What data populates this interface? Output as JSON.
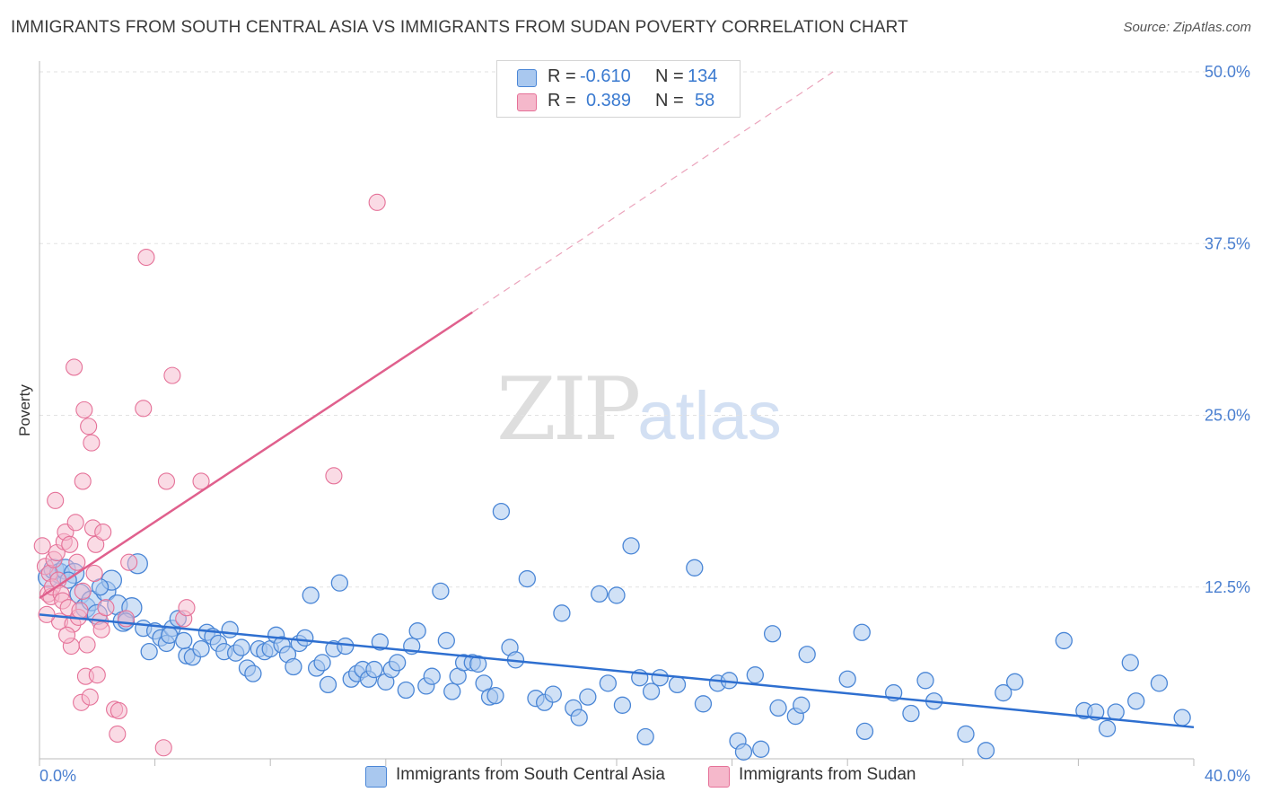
{
  "title": "IMMIGRANTS FROM SOUTH CENTRAL ASIA VS IMMIGRANTS FROM SUDAN POVERTY CORRELATION CHART",
  "source": "Source: ZipAtlas.com",
  "watermark": {
    "zip": "ZIP",
    "atlas": "atlas"
  },
  "legend": {
    "rows": [
      {
        "r_label": "R =",
        "r_value": "-0.610",
        "n_label": "N =",
        "n_value": "134",
        "color": "#a9c8ef"
      },
      {
        "r_label": "R =",
        "r_value": "0.389",
        "n_label": "N =",
        "n_value": "58",
        "color": "#f5b8cb"
      }
    ]
  },
  "bottom_legend": [
    {
      "label": "Immigrants from South Central Asia",
      "color": "#a9c8ef"
    },
    {
      "label": "Immigrants from Sudan",
      "color": "#f5b8cb"
    }
  ],
  "chart_data": {
    "type": "scatter",
    "title": "IMMIGRANTS FROM SOUTH CENTRAL ASIA VS IMMIGRANTS FROM SUDAN POVERTY CORRELATION CHART",
    "xlabel": "",
    "ylabel": "Poverty",
    "xlim": [
      0,
      40
    ],
    "ylim": [
      0,
      50
    ],
    "x_tick_labels": [
      "0.0%",
      "40.0%"
    ],
    "y_ticks": [
      12.5,
      25.0,
      37.5,
      50.0
    ],
    "y_tick_labels": [
      "12.5%",
      "25.0%",
      "37.5%",
      "50.0%"
    ],
    "grid": true,
    "series": [
      {
        "name": "Immigrants from South Central Asia",
        "color": "#4a86d6",
        "fill": "#a9c8ef",
        "trend": {
          "x": [
            0,
            40
          ],
          "y": [
            10.5,
            2.3
          ]
        },
        "points": [
          [
            0.3,
            13.2
          ],
          [
            0.5,
            13.8
          ],
          [
            0.7,
            13.5
          ],
          [
            0.9,
            13.8
          ],
          [
            1.2,
            13.5
          ],
          [
            1.4,
            12.0
          ],
          [
            1.6,
            11.0
          ],
          [
            1.8,
            11.5
          ],
          [
            2.0,
            10.5
          ],
          [
            2.3,
            12.2
          ],
          [
            2.5,
            13.0
          ],
          [
            2.7,
            11.2
          ],
          [
            2.9,
            10.0
          ],
          [
            3.2,
            11.0
          ],
          [
            3.4,
            14.2
          ],
          [
            3.6,
            9.5
          ],
          [
            3.8,
            7.8
          ],
          [
            4.0,
            9.3
          ],
          [
            4.2,
            8.8
          ],
          [
            4.4,
            8.4
          ],
          [
            4.6,
            9.5
          ],
          [
            4.8,
            10.2
          ],
          [
            5.1,
            7.5
          ],
          [
            5.3,
            7.4
          ],
          [
            5.6,
            8.0
          ],
          [
            5.8,
            9.2
          ],
          [
            6.0,
            8.9
          ],
          [
            6.2,
            8.4
          ],
          [
            6.4,
            7.8
          ],
          [
            6.6,
            9.4
          ],
          [
            6.8,
            7.7
          ],
          [
            7.0,
            8.1
          ],
          [
            7.2,
            6.6
          ],
          [
            7.4,
            6.2
          ],
          [
            7.6,
            8.0
          ],
          [
            7.8,
            7.8
          ],
          [
            8.0,
            8.0
          ],
          [
            8.2,
            9.0
          ],
          [
            8.4,
            8.3
          ],
          [
            8.6,
            7.6
          ],
          [
            8.8,
            6.7
          ],
          [
            9.0,
            8.4
          ],
          [
            9.2,
            8.8
          ],
          [
            9.4,
            11.9
          ],
          [
            9.6,
            6.6
          ],
          [
            9.8,
            7.0
          ],
          [
            10.0,
            5.4
          ],
          [
            10.2,
            8.0
          ],
          [
            10.4,
            12.8
          ],
          [
            10.6,
            8.2
          ],
          [
            10.8,
            5.8
          ],
          [
            11.0,
            6.2
          ],
          [
            11.2,
            6.5
          ],
          [
            11.4,
            5.8
          ],
          [
            11.6,
            6.5
          ],
          [
            11.8,
            8.5
          ],
          [
            12.0,
            5.6
          ],
          [
            12.2,
            6.5
          ],
          [
            12.4,
            7.0
          ],
          [
            12.7,
            5.0
          ],
          [
            12.9,
            8.2
          ],
          [
            13.1,
            9.3
          ],
          [
            13.4,
            5.3
          ],
          [
            13.6,
            6.0
          ],
          [
            13.9,
            12.2
          ],
          [
            14.1,
            8.6
          ],
          [
            14.3,
            4.9
          ],
          [
            14.5,
            6.0
          ],
          [
            14.7,
            7.0
          ],
          [
            15.0,
            7.0
          ],
          [
            15.2,
            6.9
          ],
          [
            15.4,
            5.5
          ],
          [
            15.6,
            4.5
          ],
          [
            15.8,
            4.6
          ],
          [
            16.0,
            18.0
          ],
          [
            16.3,
            8.1
          ],
          [
            16.5,
            7.2
          ],
          [
            16.9,
            13.1
          ],
          [
            17.2,
            4.4
          ],
          [
            17.5,
            4.1
          ],
          [
            17.8,
            4.7
          ],
          [
            18.1,
            10.6
          ],
          [
            18.5,
            3.7
          ],
          [
            18.7,
            3.0
          ],
          [
            19.0,
            4.5
          ],
          [
            19.4,
            12.0
          ],
          [
            19.7,
            5.5
          ],
          [
            20.0,
            11.9
          ],
          [
            20.2,
            3.9
          ],
          [
            20.5,
            15.5
          ],
          [
            20.8,
            5.9
          ],
          [
            21.0,
            1.6
          ],
          [
            21.2,
            4.9
          ],
          [
            21.5,
            5.9
          ],
          [
            22.1,
            5.4
          ],
          [
            22.7,
            13.9
          ],
          [
            23.0,
            4.0
          ],
          [
            23.5,
            5.5
          ],
          [
            23.9,
            5.7
          ],
          [
            24.2,
            1.3
          ],
          [
            24.4,
            0.5
          ],
          [
            24.8,
            6.1
          ],
          [
            25.0,
            0.7
          ],
          [
            25.4,
            9.1
          ],
          [
            25.6,
            3.7
          ],
          [
            26.2,
            3.1
          ],
          [
            26.4,
            3.9
          ],
          [
            26.6,
            7.6
          ],
          [
            28.0,
            5.8
          ],
          [
            28.5,
            9.2
          ],
          [
            28.6,
            2.0
          ],
          [
            29.6,
            4.8
          ],
          [
            30.2,
            3.3
          ],
          [
            30.7,
            5.7
          ],
          [
            31.0,
            4.2
          ],
          [
            32.1,
            1.8
          ],
          [
            32.8,
            0.6
          ],
          [
            33.4,
            4.8
          ],
          [
            33.8,
            5.6
          ],
          [
            35.5,
            8.6
          ],
          [
            36.2,
            3.5
          ],
          [
            36.6,
            3.4
          ],
          [
            37.0,
            2.2
          ],
          [
            37.3,
            3.4
          ],
          [
            37.8,
            7.0
          ],
          [
            38.0,
            4.2
          ],
          [
            38.8,
            5.5
          ],
          [
            39.6,
            3.0
          ],
          [
            1.0,
            13.0
          ],
          [
            2.1,
            12.5
          ],
          [
            3.0,
            10.0
          ],
          [
            4.5,
            9.0
          ],
          [
            5.0,
            8.6
          ]
        ]
      },
      {
        "name": "Immigrants from Sudan",
        "color": "#e57198",
        "fill": "#f5b8cb",
        "trend": {
          "x": [
            0,
            15
          ],
          "y": [
            11.7,
            32.5
          ]
        },
        "trend_extended": {
          "x": [
            15,
            27.5
          ],
          "y": [
            32.5,
            50.0
          ]
        },
        "points": [
          [
            0.1,
            15.5
          ],
          [
            0.2,
            14.0
          ],
          [
            0.3,
            12.0
          ],
          [
            0.35,
            13.5
          ],
          [
            0.4,
            11.8
          ],
          [
            0.45,
            12.5
          ],
          [
            0.5,
            14.5
          ],
          [
            0.55,
            18.8
          ],
          [
            0.6,
            15.0
          ],
          [
            0.65,
            13.0
          ],
          [
            0.7,
            10.0
          ],
          [
            0.75,
            12.0
          ],
          [
            0.8,
            11.5
          ],
          [
            0.85,
            15.8
          ],
          [
            0.9,
            16.5
          ],
          [
            1.0,
            11.0
          ],
          [
            1.05,
            15.6
          ],
          [
            1.1,
            8.2
          ],
          [
            1.15,
            9.8
          ],
          [
            1.2,
            28.5
          ],
          [
            1.25,
            17.2
          ],
          [
            1.3,
            14.3
          ],
          [
            1.35,
            10.3
          ],
          [
            1.4,
            10.8
          ],
          [
            1.45,
            4.1
          ],
          [
            1.5,
            20.2
          ],
          [
            1.55,
            25.4
          ],
          [
            1.6,
            6.0
          ],
          [
            1.65,
            8.3
          ],
          [
            1.7,
            24.2
          ],
          [
            1.75,
            4.5
          ],
          [
            1.8,
            23.0
          ],
          [
            1.85,
            16.8
          ],
          [
            1.9,
            13.5
          ],
          [
            1.95,
            15.6
          ],
          [
            2.0,
            6.1
          ],
          [
            2.1,
            10.0
          ],
          [
            2.15,
            9.4
          ],
          [
            2.2,
            16.5
          ],
          [
            2.3,
            11.0
          ],
          [
            2.6,
            3.6
          ],
          [
            2.7,
            1.8
          ],
          [
            2.75,
            3.5
          ],
          [
            3.0,
            10.2
          ],
          [
            3.1,
            14.3
          ],
          [
            3.6,
            25.5
          ],
          [
            3.7,
            36.5
          ],
          [
            4.3,
            0.8
          ],
          [
            4.6,
            27.9
          ],
          [
            4.4,
            20.2
          ],
          [
            5.0,
            10.2
          ],
          [
            5.1,
            11.0
          ],
          [
            5.6,
            20.2
          ],
          [
            10.2,
            20.6
          ],
          [
            11.7,
            40.5
          ],
          [
            0.25,
            10.5
          ],
          [
            0.95,
            9.0
          ],
          [
            1.5,
            12.2
          ]
        ]
      }
    ]
  }
}
